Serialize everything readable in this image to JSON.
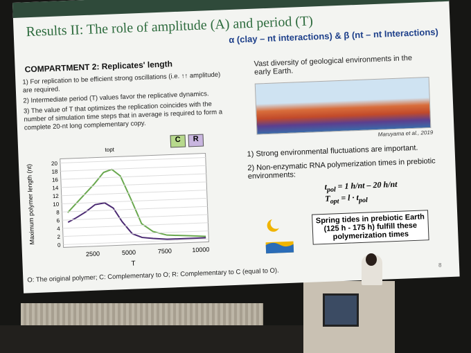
{
  "slide": {
    "title": "Results II: The role of amplitude (A) and period (T)",
    "header_right": "α (clay – nt interactions) & β (nt – nt Interactions)",
    "section": "COMPARTMENT 2: Replicates' length",
    "points": [
      "1) For replication to be efficient strong oscillations (i.e. ↑↑ amplitude) are required.",
      "2) Intermediate period (T) values favor the replicative dynamics.",
      "3) The value of T that optimizes the replication coincides with the number of simulation time steps that in average is required to form a complete 20-nt long complementary copy."
    ],
    "plot": {
      "y_label": "Maximum polymer length (nt)",
      "x_label": "T",
      "yticks": [
        "0",
        "2",
        "4",
        "6",
        "8",
        "10",
        "12",
        "14",
        "16",
        "18",
        "20"
      ],
      "xticks": [
        "2500",
        "5000",
        "7500",
        "10000"
      ],
      "marker": "topt",
      "badges": [
        "C",
        "R"
      ]
    },
    "right_caption": "Vast diversity of geological environments in the early Earth.",
    "credit": "Maruyama et al., 2019",
    "findings": [
      "1) Strong environmental fluctuations are important.",
      "2) Non-enzymatic RNA polymerization times in prebiotic environments:"
    ],
    "formula1": {
      "symbol": "t",
      "sub": "pol",
      "rest": "= 1 h/nt – 20 h/nt"
    },
    "formula2": {
      "symbol": "T",
      "sub": "opt",
      "rest": "= l · t",
      "sub2": "pol"
    },
    "callout": "Spring tides in prebiotic Earth (125 h - 175 h) fulfill these polymerization times",
    "footer": "O: The original polymer; C: Complementary to O; R: Complementary to C (equal to O).",
    "page": "8"
  }
}
